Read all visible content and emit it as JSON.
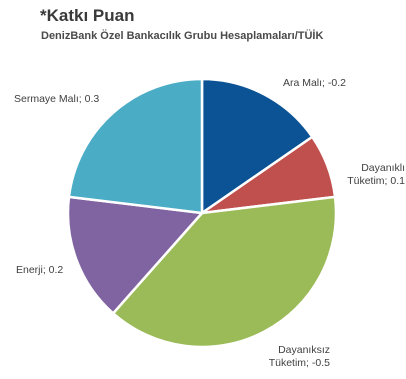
{
  "header": {
    "title": "*Katkı Puan",
    "subtitle": "DenizBank Özel Bankacılık Grubu Hesaplamaları/TÜİK"
  },
  "chart_data": {
    "type": "pie",
    "slices": [
      {
        "name": "Ara Malı",
        "value": -0.2,
        "label_lines": [
          "Ara Malı; -0.2"
        ],
        "color": "#0b5394"
      },
      {
        "name": "Dayanıklı Tüketim",
        "value": 0.1,
        "label_lines": [
          "Dayanıklı",
          "Tüketim; 0.1"
        ],
        "color": "#c0504d"
      },
      {
        "name": "Dayanıksız Tüketim",
        "value": -0.5,
        "label_lines": [
          "Dayanıksız",
          "Tüketim; -0.5"
        ],
        "color": "#9bbb59"
      },
      {
        "name": "Enerji",
        "value": 0.2,
        "label_lines": [
          "Enerji; 0.2"
        ],
        "color": "#8064a2"
      },
      {
        "name": "Sermaye Malı",
        "value": 0.3,
        "label_lines": [
          "Sermaye Malı; 0.3"
        ],
        "color": "#4bacc6"
      }
    ]
  }
}
